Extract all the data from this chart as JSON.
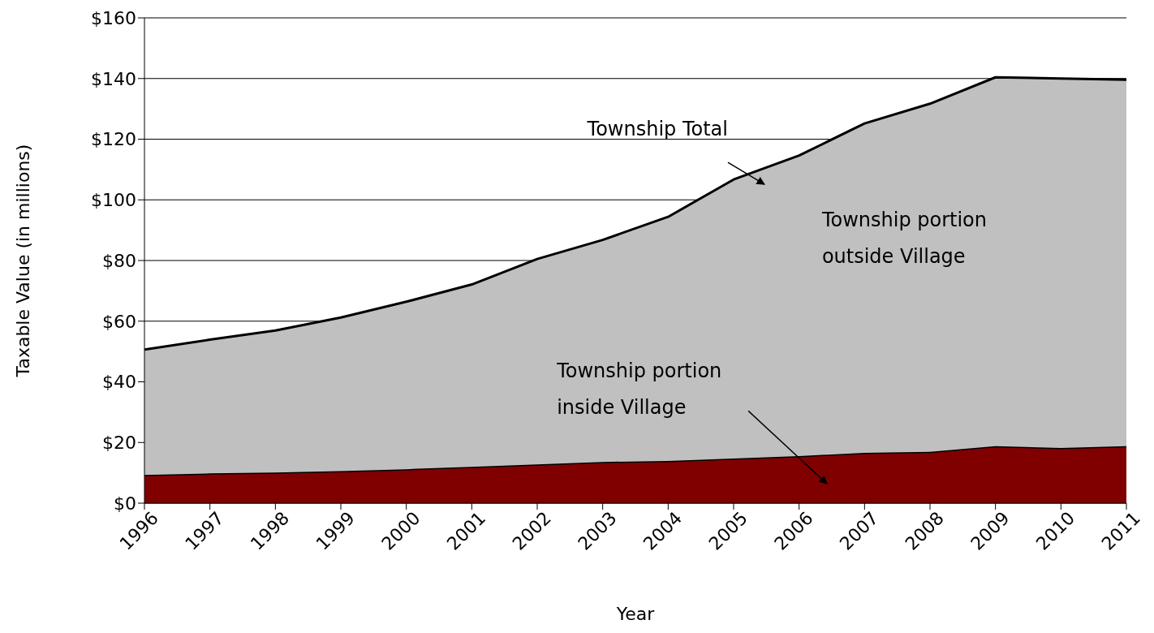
{
  "chart_data": {
    "type": "area",
    "stacked": true,
    "xlabel": "Year",
    "ylabel": "Taxable Value (in millions)",
    "categories": [
      "1996",
      "1997",
      "1998",
      "1999",
      "2000",
      "2001",
      "2002",
      "2003",
      "2004",
      "2005",
      "2006",
      "2007",
      "2008",
      "2009",
      "2010",
      "2011"
    ],
    "series": [
      {
        "name": "Township portion inside Village",
        "color": "#800000",
        "values": [
          9.3,
          9.8,
          10.1,
          10.6,
          11.2,
          12.0,
          12.8,
          13.6,
          13.9,
          14.7,
          15.5,
          16.6,
          16.9,
          18.8,
          18.2,
          18.8
        ]
      },
      {
        "name": "Township portion outside Village",
        "color": "#c0c0c0",
        "values": [
          41.3,
          44.1,
          46.8,
          50.6,
          55.2,
          60.1,
          67.7,
          73.2,
          80.5,
          92.0,
          99.1,
          108.6,
          114.8,
          121.6,
          121.8,
          120.8
        ]
      }
    ],
    "ylim": [
      0,
      160
    ],
    "yticks": [
      {
        "value": 0,
        "label": "$0"
      },
      {
        "value": 20,
        "label": "$20"
      },
      {
        "value": 40,
        "label": "$40"
      },
      {
        "value": 60,
        "label": "$60"
      },
      {
        "value": 80,
        "label": "$80"
      },
      {
        "value": 100,
        "label": "$100"
      },
      {
        "value": 120,
        "label": "$120"
      },
      {
        "value": 140,
        "label": "$140"
      },
      {
        "value": 160,
        "label": "$160"
      }
    ],
    "grid": "y",
    "annotations": [
      {
        "text": "Township Total",
        "x": "2005",
        "y": 106.7
      }
    ]
  }
}
